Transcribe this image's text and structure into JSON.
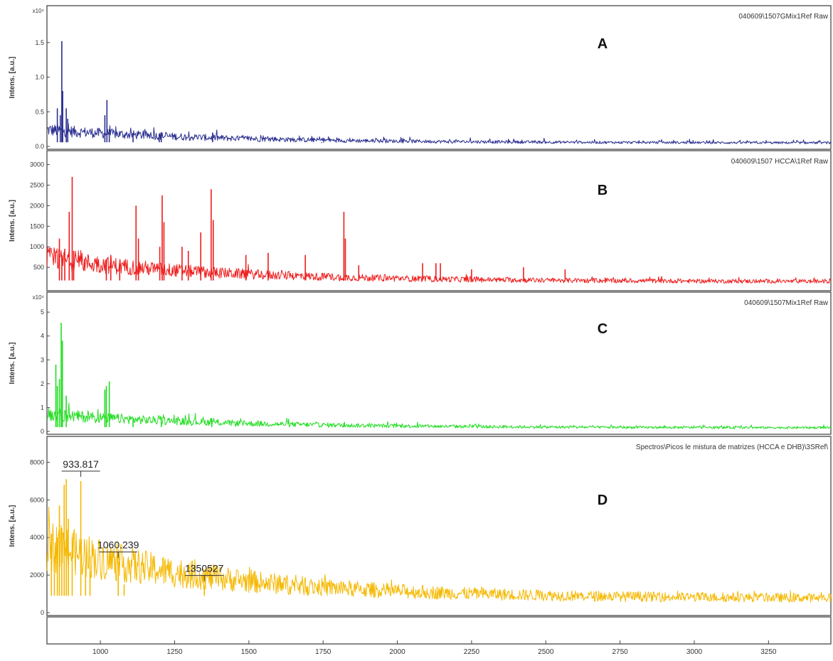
{
  "chart_data": {
    "type": "line",
    "x_axis": {
      "range": [
        820,
        3460
      ],
      "ticks": [
        1000,
        1250,
        1500,
        1750,
        2000,
        2250,
        2500,
        2750,
        3000,
        3250
      ],
      "tick_labels": [
        "1000",
        "1250",
        "1500",
        "1750",
        "2000",
        "2250",
        "2500",
        "2750",
        "3000",
        "3250"
      ]
    },
    "panels": [
      {
        "letter": "A",
        "file_label": "040609\\1507GMix1Ref Raw",
        "ylabel": "Intens. [a.u.]",
        "y_exponent": "x10⁴",
        "color": "#2b2f8f",
        "ylim": [
          0,
          1.95
        ],
        "yticks": [
          0.0,
          0.5,
          1.0,
          1.5
        ],
        "ytick_labels": [
          "0.0",
          "0.5",
          "1.0",
          "1.5"
        ],
        "baseline": 0.1,
        "peaks": [
          {
            "x": 855,
            "y": 0.55
          },
          {
            "x": 865,
            "y": 0.45
          },
          {
            "x": 870,
            "y": 1.52
          },
          {
            "x": 873,
            "y": 0.8
          },
          {
            "x": 885,
            "y": 0.55
          },
          {
            "x": 890,
            "y": 0.4
          },
          {
            "x": 1015,
            "y": 0.45
          },
          {
            "x": 1022,
            "y": 0.67
          },
          {
            "x": 1030,
            "y": 0.25
          },
          {
            "x": 1110,
            "y": 0.18
          },
          {
            "x": 1198,
            "y": 0.18
          },
          {
            "x": 1205,
            "y": 0.2
          },
          {
            "x": 1378,
            "y": 0.2
          },
          {
            "x": 1745,
            "y": 0.05
          },
          {
            "x": 2990,
            "y": 0.04
          }
        ]
      },
      {
        "letter": "B",
        "file_label": "040609\\1507 HCCA\\1Ref Raw",
        "ylabel": "Intens. [a.u.]",
        "y_exponent": "",
        "color": "#ee1c1c",
        "ylim": [
          0,
          3200
        ],
        "yticks": [
          500,
          1000,
          1500,
          2000,
          2500,
          3000
        ],
        "ytick_labels": [
          "500",
          "1000",
          "1500",
          "2000",
          "2500",
          "3000"
        ],
        "baseline": 300,
        "peaks": [
          {
            "x": 862,
            "y": 1200
          },
          {
            "x": 870,
            "y": 800
          },
          {
            "x": 880,
            "y": 950
          },
          {
            "x": 895,
            "y": 1850
          },
          {
            "x": 905,
            "y": 2700
          },
          {
            "x": 910,
            "y": 900
          },
          {
            "x": 1020,
            "y": 700
          },
          {
            "x": 1035,
            "y": 800
          },
          {
            "x": 1065,
            "y": 600
          },
          {
            "x": 1120,
            "y": 2000
          },
          {
            "x": 1128,
            "y": 1200
          },
          {
            "x": 1200,
            "y": 1000
          },
          {
            "x": 1208,
            "y": 2250
          },
          {
            "x": 1214,
            "y": 1600
          },
          {
            "x": 1275,
            "y": 1000
          },
          {
            "x": 1296,
            "y": 900
          },
          {
            "x": 1338,
            "y": 1350
          },
          {
            "x": 1373,
            "y": 2400
          },
          {
            "x": 1380,
            "y": 1650
          },
          {
            "x": 1490,
            "y": 800
          },
          {
            "x": 1565,
            "y": 850
          },
          {
            "x": 1690,
            "y": 800
          },
          {
            "x": 1820,
            "y": 1850
          },
          {
            "x": 1825,
            "y": 1200
          },
          {
            "x": 1870,
            "y": 550
          },
          {
            "x": 2085,
            "y": 600
          },
          {
            "x": 2130,
            "y": 600
          },
          {
            "x": 2145,
            "y": 600
          },
          {
            "x": 2250,
            "y": 450
          },
          {
            "x": 2425,
            "y": 500
          },
          {
            "x": 2565,
            "y": 450
          },
          {
            "x": 2700,
            "y": 250
          },
          {
            "x": 2890,
            "y": 280
          }
        ]
      },
      {
        "letter": "C",
        "file_label": "040609\\1507Mix1Ref Raw",
        "ylabel": "Intens. [a.u.]",
        "y_exponent": "x10⁴",
        "color": "#22dd22",
        "ylim": [
          0,
          5.6
        ],
        "yticks": [
          0,
          1,
          2,
          3,
          4,
          5
        ],
        "ytick_labels": [
          "0",
          "1",
          "2",
          "3",
          "4",
          "5"
        ],
        "baseline": 0.3,
        "peaks": [
          {
            "x": 850,
            "y": 2.8
          },
          {
            "x": 855,
            "y": 1.9
          },
          {
            "x": 862,
            "y": 2.2
          },
          {
            "x": 868,
            "y": 4.55
          },
          {
            "x": 872,
            "y": 3.8
          },
          {
            "x": 885,
            "y": 1.5
          },
          {
            "x": 1015,
            "y": 1.75
          },
          {
            "x": 1020,
            "y": 1.9
          },
          {
            "x": 1030,
            "y": 2.1
          },
          {
            "x": 1110,
            "y": 0.5
          },
          {
            "x": 1205,
            "y": 0.6
          },
          {
            "x": 1375,
            "y": 0.55
          },
          {
            "x": 1820,
            "y": 0.35
          }
        ]
      },
      {
        "letter": "D",
        "file_label": "Spectros\\Picos le mistura de matrizes (HCCA e DHB)\\3SRef\\",
        "ylabel": "Intens. [a.u.]",
        "y_exponent": "",
        "color": "#f5b800",
        "ylim": [
          0,
          9000
        ],
        "yticks": [
          0,
          2000,
          4000,
          6000,
          8000
        ],
        "ytick_labels": [
          "0",
          "2000",
          "4000",
          "6000",
          "8000"
        ],
        "baseline": 1500,
        "peaks": [
          {
            "x": 835,
            "y": 4200
          },
          {
            "x": 845,
            "y": 3000
          },
          {
            "x": 855,
            "y": 4000
          },
          {
            "x": 862,
            "y": 5700
          },
          {
            "x": 870,
            "y": 4500
          },
          {
            "x": 878,
            "y": 6800
          },
          {
            "x": 885,
            "y": 7100
          },
          {
            "x": 892,
            "y": 5000
          },
          {
            "x": 905,
            "y": 4000
          },
          {
            "x": 934,
            "y": 7000
          },
          {
            "x": 950,
            "y": 2500
          },
          {
            "x": 965,
            "y": 3000
          },
          {
            "x": 1060,
            "y": 2700
          },
          {
            "x": 1080,
            "y": 1500
          },
          {
            "x": 1350,
            "y": 1450
          }
        ],
        "annotations": [
          {
            "label": "933.817",
            "x": 934
          },
          {
            "label": "1060.239",
            "x": 1060
          },
          {
            "label": "1350527",
            "x": 1350
          }
        ]
      }
    ]
  }
}
